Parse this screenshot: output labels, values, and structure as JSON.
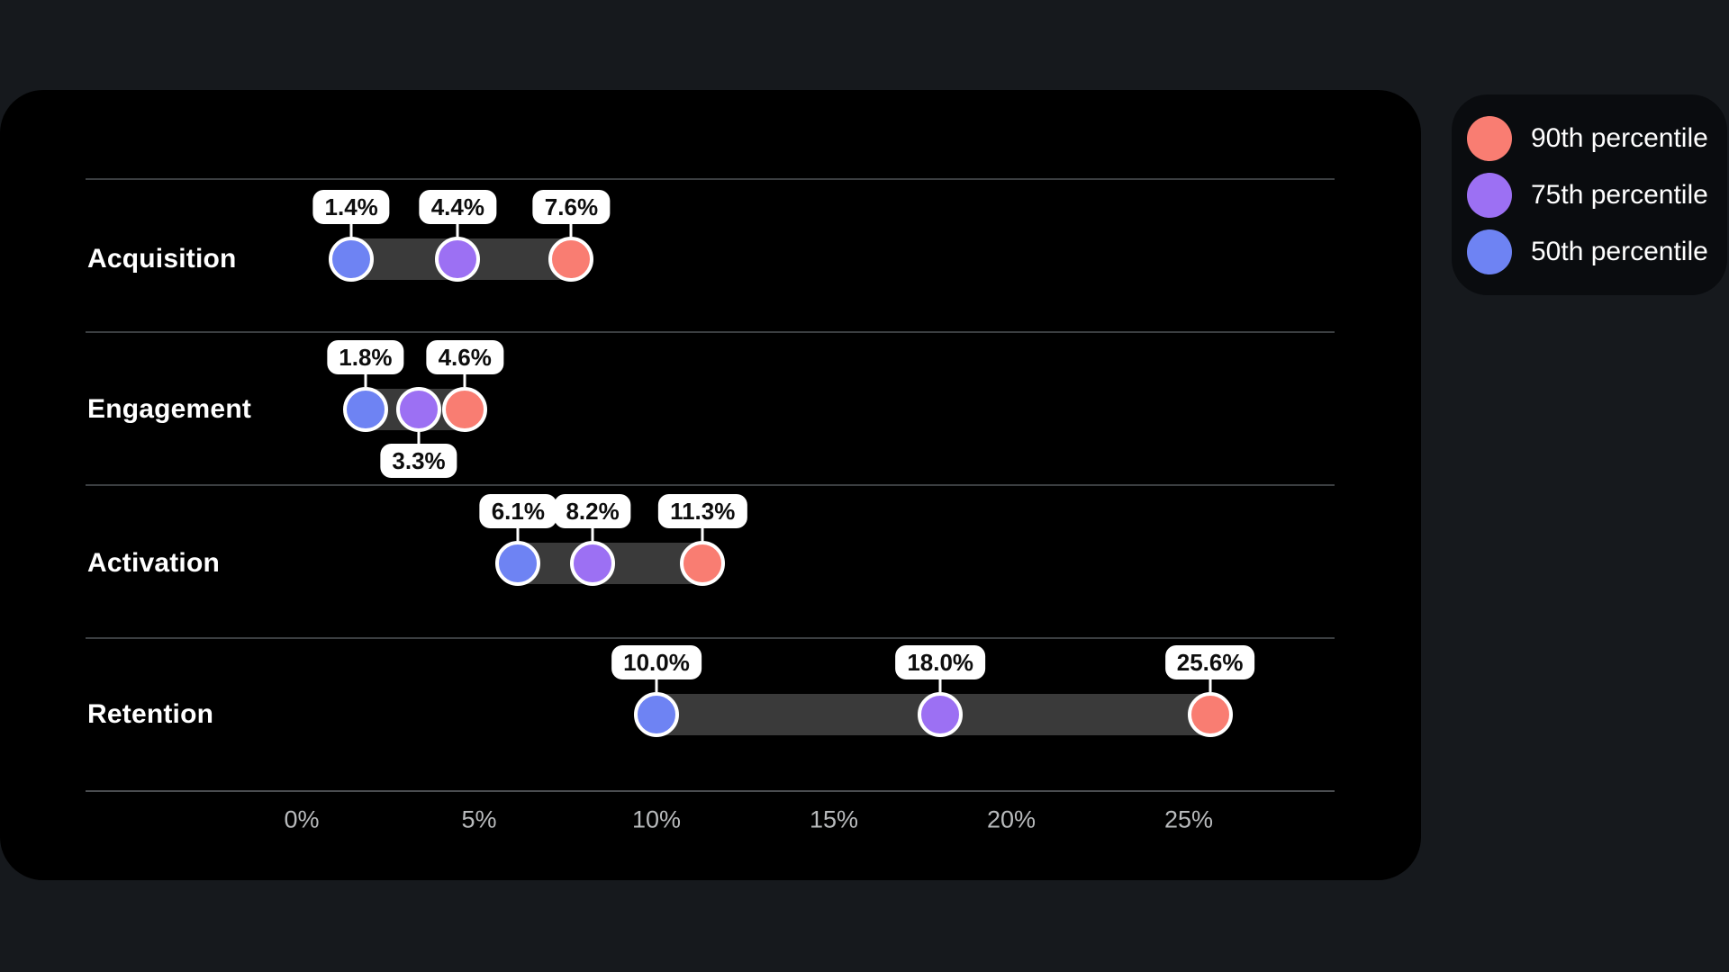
{
  "page": {
    "background_color": "#16191d",
    "card_color": "#000000",
    "legend_background_color": "#0a0c0f"
  },
  "colors": {
    "p90": "#f97d72",
    "p75": "#9c70f3",
    "p50": "#6e83f3",
    "band": "#3a3a3a",
    "grid": "#3b3e41",
    "tick_text": "#b9bbbd",
    "value_label_bg": "#ffffff",
    "value_label_text": "#0d0d0d"
  },
  "legend": {
    "items": [
      {
        "label": "90th percentile",
        "color": "#f97d72",
        "key": "p90"
      },
      {
        "label": "75th percentile",
        "color": "#9c70f3",
        "key": "p75"
      },
      {
        "label": "50th percentile",
        "color": "#6e83f3",
        "key": "p50"
      }
    ]
  },
  "chart_data": {
    "type": "dumbbell",
    "orientation": "horizontal",
    "categories": [
      "Acquisition",
      "Engagement",
      "Activation",
      "Retention"
    ],
    "series": [
      {
        "name": "50th percentile",
        "color": "#6e83f3",
        "values": [
          1.4,
          1.8,
          6.1,
          10.0
        ]
      },
      {
        "name": "75th percentile",
        "color": "#9c70f3",
        "values": [
          4.4,
          3.3,
          8.2,
          18.0
        ]
      },
      {
        "name": "90th percentile",
        "color": "#f97d72",
        "values": [
          7.6,
          4.6,
          11.3,
          25.6
        ]
      }
    ],
    "value_labels": [
      [
        "1.4%",
        "4.4%",
        "7.6%"
      ],
      [
        "1.8%",
        "3.3%",
        "4.6%"
      ],
      [
        "6.1%",
        "8.2%",
        "11.3%"
      ],
      [
        "10.0%",
        "18.0%",
        "25.6%"
      ]
    ],
    "label_sides": [
      [
        "top",
        "top",
        "top"
      ],
      [
        "top",
        "bottom",
        "top"
      ],
      [
        "top",
        "top",
        "top"
      ],
      [
        "top",
        "top",
        "top"
      ]
    ],
    "x_tick_labels": [
      "0%",
      "5%",
      "10%",
      "15%",
      "20%",
      "25%"
    ],
    "x_tick_values": [
      0,
      5,
      10,
      15,
      20,
      25
    ],
    "xlim": [
      0,
      29.1
    ],
    "grid": true,
    "legend_position": "top-right"
  }
}
